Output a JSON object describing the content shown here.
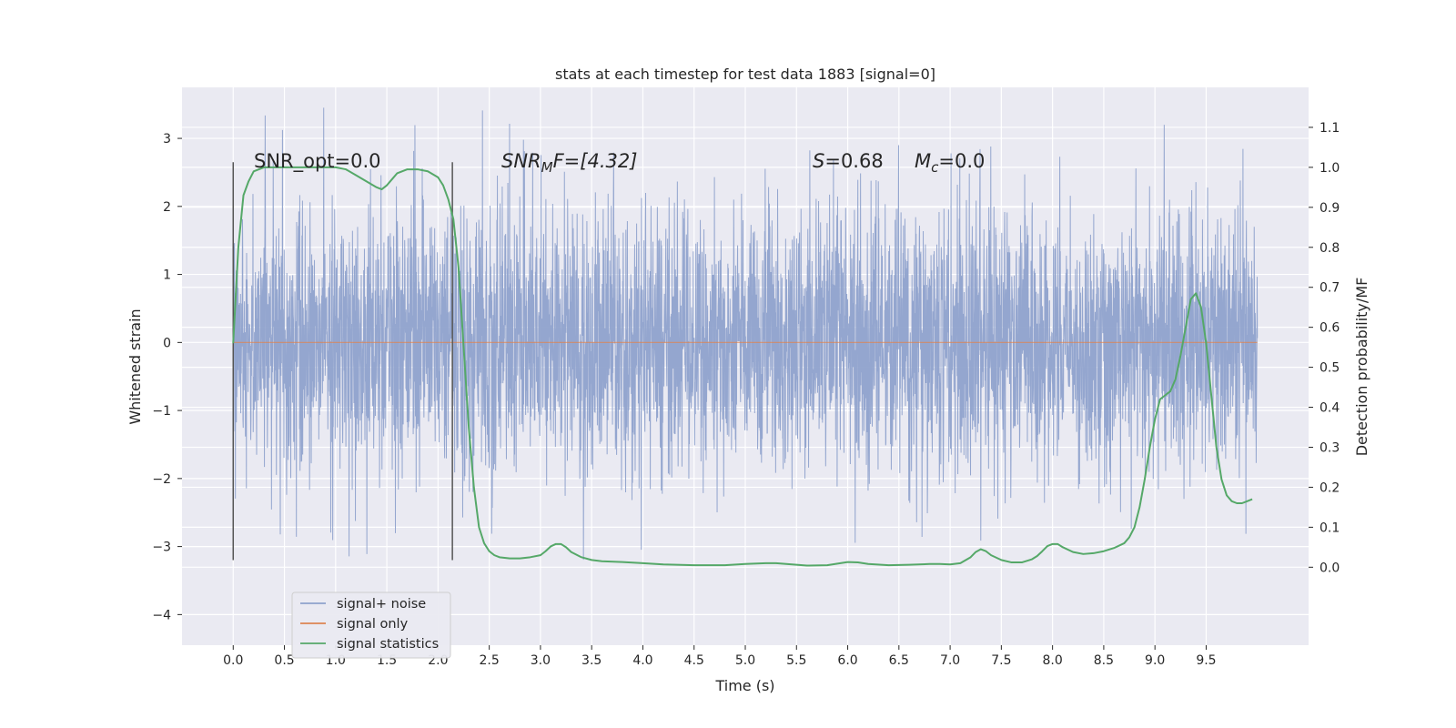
{
  "chart_data": {
    "type": "line",
    "title": "stats at each timestep for test data 1883 [signal=0]",
    "xlabel": "Time (s)",
    "ylabel": "Whitened strain",
    "y2label": "Detection probability/MF",
    "xlim": [
      -0.5,
      10.5
    ],
    "ylim": [
      -4.45,
      3.75
    ],
    "y2lim": [
      -0.195,
      1.2
    ],
    "xticks": [
      "0.0",
      "0.5",
      "1.0",
      "1.5",
      "2.0",
      "2.5",
      "3.0",
      "3.5",
      "4.0",
      "4.5",
      "5.0",
      "5.5",
      "6.0",
      "6.5",
      "7.0",
      "7.5",
      "8.0",
      "8.5",
      "9.0",
      "9.5"
    ],
    "yticks": [
      "3",
      "2",
      "1",
      "0",
      "−1",
      "−2",
      "−3",
      "−4"
    ],
    "y2ticks": [
      "1.1",
      "1.0",
      "0.9",
      "0.8",
      "0.7",
      "0.6",
      "0.5",
      "0.4",
      "0.3",
      "0.2",
      "0.1",
      "0.0"
    ],
    "grid": true,
    "legend_position": "lower-left",
    "colors": {
      "noise": "#8fa2cc",
      "signal_only": "#dd8452",
      "statistics": "#55a868",
      "background": "#eaeaf2",
      "vline": "#555555"
    },
    "vlines_x": [
      0.0,
      2.14
    ],
    "vlines_range": [
      -3.2,
      2.65
    ],
    "annotations": {
      "snr_opt": "SNR_opt=0.0",
      "snr_mf_main": "SNR",
      "snr_mf_sub": "M",
      "snr_mf_rest": "F=[4.32]",
      "s_var": "S",
      "s_rest": "=0.68",
      "mc_var": "M",
      "mc_sub": "c",
      "mc_rest": "=0.0"
    },
    "series": [
      {
        "name": "signal+ noise",
        "x_range": [
          0.0,
          10.0
        ],
        "y_extent": [
          -4.05,
          3.45
        ],
        "description_level": 0.0
      },
      {
        "name": "signal only",
        "x": [
          0.0,
          10.0
        ],
        "y": [
          0.0,
          0.0
        ]
      },
      {
        "name": "signal statistics",
        "x": [
          0.0,
          0.05,
          0.1,
          0.15,
          0.2,
          0.3,
          0.5,
          0.8,
          1.0,
          1.1,
          1.2,
          1.3,
          1.4,
          1.45,
          1.5,
          1.55,
          1.6,
          1.7,
          1.8,
          1.9,
          2.0,
          2.05,
          2.1,
          2.15,
          2.2,
          2.25,
          2.3,
          2.35,
          2.4,
          2.45,
          2.5,
          2.55,
          2.6,
          2.7,
          2.8,
          2.9,
          3.0,
          3.05,
          3.1,
          3.15,
          3.2,
          3.25,
          3.3,
          3.4,
          3.5,
          3.6,
          3.8,
          4.0,
          4.2,
          4.5,
          4.8,
          5.0,
          5.2,
          5.3,
          5.4,
          5.6,
          5.8,
          5.9,
          6.0,
          6.1,
          6.2,
          6.4,
          6.6,
          6.8,
          6.9,
          7.0,
          7.1,
          7.2,
          7.25,
          7.3,
          7.35,
          7.4,
          7.5,
          7.6,
          7.7,
          7.8,
          7.85,
          7.9,
          7.95,
          8.0,
          8.05,
          8.1,
          8.2,
          8.3,
          8.4,
          8.5,
          8.6,
          8.7,
          8.75,
          8.8,
          8.85,
          8.9,
          8.95,
          9.0,
          9.05,
          9.1,
          9.15,
          9.2,
          9.25,
          9.3,
          9.35,
          9.4,
          9.45,
          9.5,
          9.55,
          9.6,
          9.65,
          9.7,
          9.75,
          9.8,
          9.85,
          9.9,
          9.95
        ],
        "y": [
          0.56,
          0.8,
          0.93,
          0.965,
          0.99,
          1.0,
          1.0,
          1.0,
          1.0,
          0.995,
          0.98,
          0.965,
          0.95,
          0.945,
          0.955,
          0.97,
          0.985,
          0.995,
          0.995,
          0.99,
          0.975,
          0.955,
          0.92,
          0.87,
          0.75,
          0.55,
          0.35,
          0.2,
          0.1,
          0.06,
          0.04,
          0.03,
          0.025,
          0.022,
          0.022,
          0.025,
          0.03,
          0.04,
          0.052,
          0.058,
          0.058,
          0.05,
          0.038,
          0.025,
          0.018,
          0.015,
          0.013,
          0.01,
          0.007,
          0.005,
          0.005,
          0.008,
          0.01,
          0.01,
          0.008,
          0.004,
          0.005,
          0.009,
          0.013,
          0.012,
          0.008,
          0.005,
          0.006,
          0.008,
          0.008,
          0.007,
          0.01,
          0.025,
          0.038,
          0.045,
          0.04,
          0.03,
          0.018,
          0.012,
          0.012,
          0.02,
          0.028,
          0.04,
          0.053,
          0.058,
          0.058,
          0.05,
          0.038,
          0.033,
          0.035,
          0.04,
          0.048,
          0.06,
          0.075,
          0.1,
          0.15,
          0.22,
          0.3,
          0.37,
          0.42,
          0.43,
          0.44,
          0.47,
          0.53,
          0.6,
          0.67,
          0.685,
          0.65,
          0.56,
          0.43,
          0.3,
          0.22,
          0.18,
          0.165,
          0.16,
          0.16,
          0.165,
          0.17
        ]
      }
    ]
  }
}
